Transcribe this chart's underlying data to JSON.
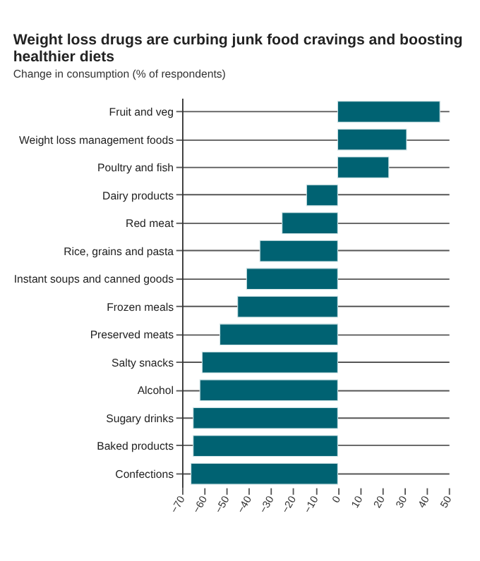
{
  "chart_data": {
    "type": "bar",
    "orientation": "horizontal",
    "title": "Weight loss drugs are curbing junk food cravings and boosting healthier diets",
    "subtitle": "Change in consumption (% of respondents)",
    "categories": [
      "Fruit and veg",
      "Weight loss management foods",
      "Poultry and fish",
      "Dairy products",
      "Red meat",
      "Rice, grains and pasta",
      "Instant soups and canned goods",
      "Frozen meals",
      "Preserved meats",
      "Salty snacks",
      "Alcohol",
      "Sugary drinks",
      "Baked products",
      "Confections"
    ],
    "values": [
      46,
      31,
      23,
      -14,
      -25,
      -35,
      -41,
      -45,
      -53,
      -61,
      -62,
      -65,
      -65,
      -66
    ],
    "color": "#006272",
    "xlim": [
      -70,
      50
    ],
    "xticks": [
      -70,
      -60,
      -50,
      -40,
      -30,
      -20,
      -10,
      0,
      10,
      20,
      30,
      40,
      50
    ],
    "grid": "y"
  }
}
